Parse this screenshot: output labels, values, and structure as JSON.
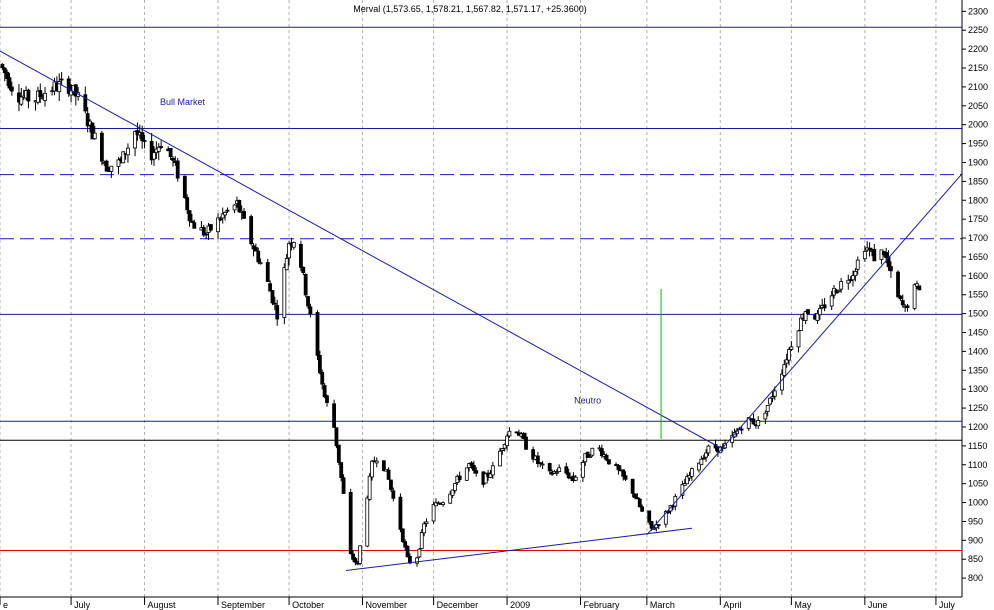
{
  "chart_data": {
    "type": "candlestick",
    "title": "Merval (1,573.65, 1,578.21, 1,567.82, 1,571.17, +25.3600)",
    "ylim": [
      750,
      2330
    ],
    "y_ticks": [
      800,
      850,
      900,
      950,
      1000,
      1050,
      1100,
      1150,
      1200,
      1250,
      1300,
      1350,
      1400,
      1450,
      1500,
      1550,
      1600,
      1650,
      1700,
      1750,
      1800,
      1850,
      1900,
      1950,
      2000,
      2050,
      2100,
      2150,
      2200,
      2250,
      2300
    ],
    "x_range": [
      "2008-06-01",
      "2009-07-12"
    ],
    "x_ticks": [
      {
        "date": "2008-06-01",
        "label": "e"
      },
      {
        "date": "2008-07-01",
        "label": "July"
      },
      {
        "date": "2008-08-01",
        "label": "August"
      },
      {
        "date": "2008-09-01",
        "label": "September"
      },
      {
        "date": "2008-10-01",
        "label": "October"
      },
      {
        "date": "2008-11-01",
        "label": "November"
      },
      {
        "date": "2008-12-01",
        "label": "December"
      },
      {
        "date": "2009-01-01",
        "label": "2009"
      },
      {
        "date": "2009-02-01",
        "label": "February"
      },
      {
        "date": "2009-03-01",
        "label": "March"
      },
      {
        "date": "2009-04-01",
        "label": "April"
      },
      {
        "date": "2009-05-01",
        "label": "May"
      },
      {
        "date": "2009-06-01",
        "label": "June"
      },
      {
        "date": "2009-07-01",
        "label": "July"
      }
    ],
    "grid": true,
    "horizontal_lines": [
      {
        "value": 2258,
        "style": "solid",
        "color": "#1a1aa0"
      },
      {
        "value": 1990,
        "style": "solid",
        "color": "#1a1aa0"
      },
      {
        "value": 1868,
        "style": "dashed",
        "color": "#1a1aa0"
      },
      {
        "value": 1698,
        "style": "dashed",
        "color": "#1a1aa0"
      },
      {
        "value": 1498,
        "style": "solid",
        "color": "#1a1aa0"
      },
      {
        "value": 1215,
        "style": "solid",
        "color": "#1a1aa0"
      },
      {
        "value": 1165,
        "style": "solid",
        "color": "#000000"
      },
      {
        "value": 873,
        "style": "solid",
        "color": "#e00000"
      }
    ],
    "trend_lines": [
      {
        "from": [
          "2008-06-01",
          2195
        ],
        "to": [
          "2009-04-01",
          1145
        ],
        "color": "#1a1aa0"
      },
      {
        "from": [
          "2008-10-25",
          820
        ],
        "to": [
          "2009-03-20",
          932
        ],
        "color": "#1a1aa0"
      },
      {
        "from": [
          "2009-03-01",
          915
        ],
        "to": [
          "2009-07-12",
          1870
        ],
        "color": "#1a1aa0"
      },
      {
        "from": [
          "2009-03-07",
          1565
        ],
        "to": [
          "2009-03-07",
          1168
        ],
        "color": "#00bb00"
      }
    ],
    "annotations": [
      {
        "text": "Bull Market",
        "at": [
          "2008-08-17",
          2052
        ]
      },
      {
        "text": "Neutro",
        "at": [
          "2009-02-04",
          1262
        ]
      }
    ],
    "waypoints": [
      [
        "2008-06-01",
        2160
      ],
      [
        "2008-06-08",
        2080
      ],
      [
        "2008-06-15",
        2065
      ],
      [
        "2008-06-22",
        2095
      ],
      [
        "2008-06-29",
        2110
      ],
      [
        "2008-07-04",
        2070
      ],
      [
        "2008-07-10",
        1980
      ],
      [
        "2008-07-16",
        1890
      ],
      [
        "2008-07-22",
        1900
      ],
      [
        "2008-07-28",
        1985
      ],
      [
        "2008-08-03",
        1915
      ],
      [
        "2008-08-09",
        1960
      ],
      [
        "2008-08-15",
        1870
      ],
      [
        "2008-08-21",
        1740
      ],
      [
        "2008-08-27",
        1710
      ],
      [
        "2008-09-03",
        1760
      ],
      [
        "2008-09-09",
        1790
      ],
      [
        "2008-09-15",
        1690
      ],
      [
        "2008-09-20",
        1620
      ],
      [
        "2008-09-26",
        1500
      ],
      [
        "2008-10-01",
        1690
      ],
      [
        "2008-10-04",
        1700
      ],
      [
        "2008-10-08",
        1560
      ],
      [
        "2008-10-12",
        1420
      ],
      [
        "2008-10-16",
        1280
      ],
      [
        "2008-10-20",
        1200
      ],
      [
        "2008-10-24",
        1020
      ],
      [
        "2008-10-27",
        860
      ],
      [
        "2008-10-30",
        835
      ],
      [
        "2008-11-02",
        980
      ],
      [
        "2008-11-05",
        1100
      ],
      [
        "2008-11-08",
        1130
      ],
      [
        "2008-11-12",
        1060
      ],
      [
        "2008-11-16",
        960
      ],
      [
        "2008-11-20",
        850
      ],
      [
        "2008-11-23",
        830
      ],
      [
        "2008-11-27",
        940
      ],
      [
        "2008-12-01",
        990
      ],
      [
        "2008-12-06",
        1010
      ],
      [
        "2008-12-11",
        1060
      ],
      [
        "2008-12-16",
        1100
      ],
      [
        "2008-12-21",
        1050
      ],
      [
        "2008-12-26",
        1090
      ],
      [
        "2009-01-01",
        1180
      ],
      [
        "2009-01-04",
        1205
      ],
      [
        "2009-01-09",
        1150
      ],
      [
        "2009-01-14",
        1105
      ],
      [
        "2009-01-19",
        1075
      ],
      [
        "2009-01-24",
        1090
      ],
      [
        "2009-01-29",
        1060
      ],
      [
        "2009-02-03",
        1120
      ],
      [
        "2009-02-08",
        1150
      ],
      [
        "2009-02-13",
        1110
      ],
      [
        "2009-02-18",
        1075
      ],
      [
        "2009-02-23",
        1030
      ],
      [
        "2009-02-28",
        960
      ],
      [
        "2009-03-03",
        930
      ],
      [
        "2009-03-08",
        960
      ],
      [
        "2009-03-13",
        1010
      ],
      [
        "2009-03-18",
        1060
      ],
      [
        "2009-03-23",
        1110
      ],
      [
        "2009-03-28",
        1150
      ],
      [
        "2009-04-02",
        1140
      ],
      [
        "2009-04-07",
        1180
      ],
      [
        "2009-04-12",
        1220
      ],
      [
        "2009-04-17",
        1210
      ],
      [
        "2009-04-22",
        1270
      ],
      [
        "2009-04-27",
        1350
      ],
      [
        "2009-05-02",
        1440
      ],
      [
        "2009-05-07",
        1510
      ],
      [
        "2009-05-12",
        1490
      ],
      [
        "2009-05-17",
        1545
      ],
      [
        "2009-05-22",
        1580
      ],
      [
        "2009-05-27",
        1610
      ],
      [
        "2009-06-01",
        1680
      ],
      [
        "2009-06-05",
        1650
      ],
      [
        "2009-06-09",
        1665
      ],
      [
        "2009-06-12",
        1600
      ],
      [
        "2009-06-15",
        1540
      ],
      [
        "2009-06-18",
        1510
      ],
      [
        "2009-06-21",
        1560
      ],
      [
        "2009-06-24",
        1572
      ]
    ]
  }
}
